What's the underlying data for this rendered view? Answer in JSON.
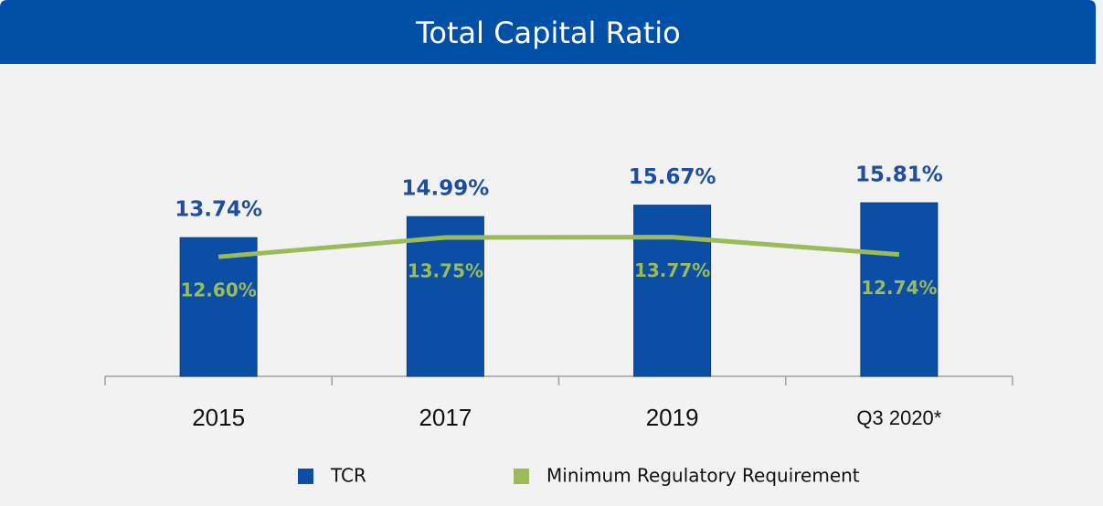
{
  "chart_data": {
    "type": "bar",
    "title": "Total Capital Ratio",
    "categories": [
      "2015",
      "2017",
      "2019",
      "Q3 2020*"
    ],
    "ylim": [
      5.5,
      22
    ],
    "series": [
      {
        "name": "TCR",
        "type": "bar",
        "color": "#0b4ea6",
        "values": [
          13.74,
          14.99,
          15.67,
          15.81
        ],
        "value_labels": [
          "13.74%",
          "14.99%",
          "15.67%",
          "15.81%"
        ],
        "label_color": "#1f4e9c"
      },
      {
        "name": "Minimum Regulatory Requirement",
        "type": "line",
        "color": "#9bbb59",
        "values": [
          12.6,
          13.75,
          13.77,
          12.74
        ],
        "value_labels": [
          "12.60%",
          "13.75%",
          "13.77%",
          "12.74%"
        ],
        "label_color": "#9bbb59"
      }
    ]
  }
}
